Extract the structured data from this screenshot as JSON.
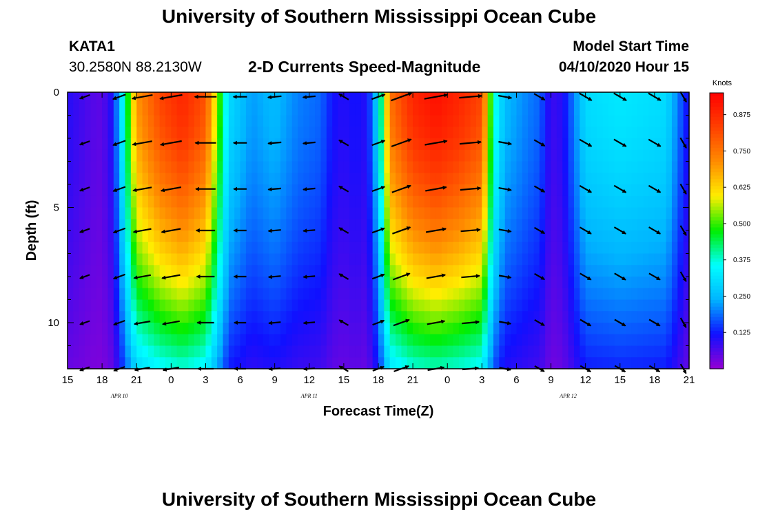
{
  "page": {
    "title_top": "University of Southern Mississippi Ocean Cube",
    "title_bottom": "University of Southern Mississippi Ocean Cube"
  },
  "header": {
    "station": "KATA1",
    "coords": "30.2580N 88.2130W",
    "plot_title": "2-D Currents Speed-Magnitude",
    "model_start_label": "Model Start Time",
    "model_start_value": "04/10/2020 Hour 15"
  },
  "chart_data": {
    "type": "heatmap",
    "title": "2-D Currents Speed-Magnitude",
    "xlabel": "Forecast Time(Z)",
    "ylabel": "Depth (ft)",
    "x_hours_range": [
      0,
      54
    ],
    "x_ticks": [
      {
        "h": 0,
        "label": "15"
      },
      {
        "h": 3,
        "label": "18"
      },
      {
        "h": 6,
        "label": "21"
      },
      {
        "h": 9,
        "label": "0"
      },
      {
        "h": 12,
        "label": "3"
      },
      {
        "h": 15,
        "label": "6"
      },
      {
        "h": 18,
        "label": "9"
      },
      {
        "h": 21,
        "label": "12"
      },
      {
        "h": 24,
        "label": "15"
      },
      {
        "h": 27,
        "label": "18"
      },
      {
        "h": 30,
        "label": "21"
      },
      {
        "h": 33,
        "label": "0"
      },
      {
        "h": 36,
        "label": "3"
      },
      {
        "h": 39,
        "label": "6"
      },
      {
        "h": 42,
        "label": "9"
      },
      {
        "h": 45,
        "label": "12"
      },
      {
        "h": 48,
        "label": "15"
      },
      {
        "h": 51,
        "label": "18"
      },
      {
        "h": 54,
        "label": "21"
      }
    ],
    "date_labels": [
      {
        "h": 4.5,
        "label": "APR 10"
      },
      {
        "h": 21,
        "label": "APR 11"
      },
      {
        "h": 43.5,
        "label": "APR 12"
      }
    ],
    "y_range": [
      0,
      12
    ],
    "y_ticks": [
      0,
      5,
      10
    ],
    "colorbar": {
      "unit": "Knots",
      "range": [
        0,
        0.95
      ],
      "ticks": [
        "0.875",
        "0.750",
        "0.625",
        "0.500",
        "0.375",
        "0.250",
        "0.125"
      ],
      "colors": [
        "#9400d3",
        "#1010ff",
        "#00b4ff",
        "#00ffff",
        "#00ee00",
        "#ffee00",
        "#ff8c00",
        "#ff4000",
        "#ff0000"
      ]
    },
    "speed_profile_knots": [
      {
        "h": 0,
        "v": 0.1
      },
      {
        "h": 1,
        "v": 0.08
      },
      {
        "h": 2,
        "v": 0.06
      },
      {
        "h": 3,
        "v": 0.05
      },
      {
        "h": 4,
        "v": 0.12
      },
      {
        "h": 5,
        "v": 0.4
      },
      {
        "h": 6,
        "v": 0.7
      },
      {
        "h": 8,
        "v": 0.82
      },
      {
        "h": 10,
        "v": 0.88
      },
      {
        "h": 12,
        "v": 0.8
      },
      {
        "h": 13,
        "v": 0.55
      },
      {
        "h": 14,
        "v": 0.3
      },
      {
        "h": 16,
        "v": 0.22
      },
      {
        "h": 18,
        "v": 0.25
      },
      {
        "h": 20,
        "v": 0.2
      },
      {
        "h": 22,
        "v": 0.18
      },
      {
        "h": 23,
        "v": 0.12
      },
      {
        "h": 24,
        "v": 0.1
      },
      {
        "h": 25,
        "v": 0.12
      },
      {
        "h": 26,
        "v": 0.1
      },
      {
        "h": 27,
        "v": 0.3
      },
      {
        "h": 28,
        "v": 0.75
      },
      {
        "h": 30,
        "v": 0.88
      },
      {
        "h": 32,
        "v": 0.92
      },
      {
        "h": 34,
        "v": 0.88
      },
      {
        "h": 36,
        "v": 0.82
      },
      {
        "h": 37,
        "v": 0.4
      },
      {
        "h": 38,
        "v": 0.25
      },
      {
        "h": 40,
        "v": 0.2
      },
      {
        "h": 41,
        "v": 0.18
      },
      {
        "h": 42,
        "v": 0.08
      },
      {
        "h": 43,
        "v": 0.1
      },
      {
        "h": 44,
        "v": 0.2
      },
      {
        "h": 45,
        "v": 0.3
      },
      {
        "h": 48,
        "v": 0.32
      },
      {
        "h": 52,
        "v": 0.3
      },
      {
        "h": 53,
        "v": 0.2
      },
      {
        "h": 54,
        "v": 0.1
      }
    ],
    "vector_times_h": [
      1.5,
      4.5,
      6.5,
      9,
      12,
      15,
      18,
      21,
      24,
      27,
      29,
      32,
      35,
      38,
      41,
      45,
      48,
      51,
      53.5
    ],
    "vector_depths_ft": [
      0.2,
      2.2,
      4.2,
      6.0,
      8.0,
      10.0,
      12.0
    ],
    "vector_angles_deg": [
      200,
      200,
      190,
      190,
      180,
      180,
      185,
      185,
      150,
      20,
      20,
      10,
      5,
      350,
      330,
      330,
      330,
      330,
      300
    ]
  }
}
